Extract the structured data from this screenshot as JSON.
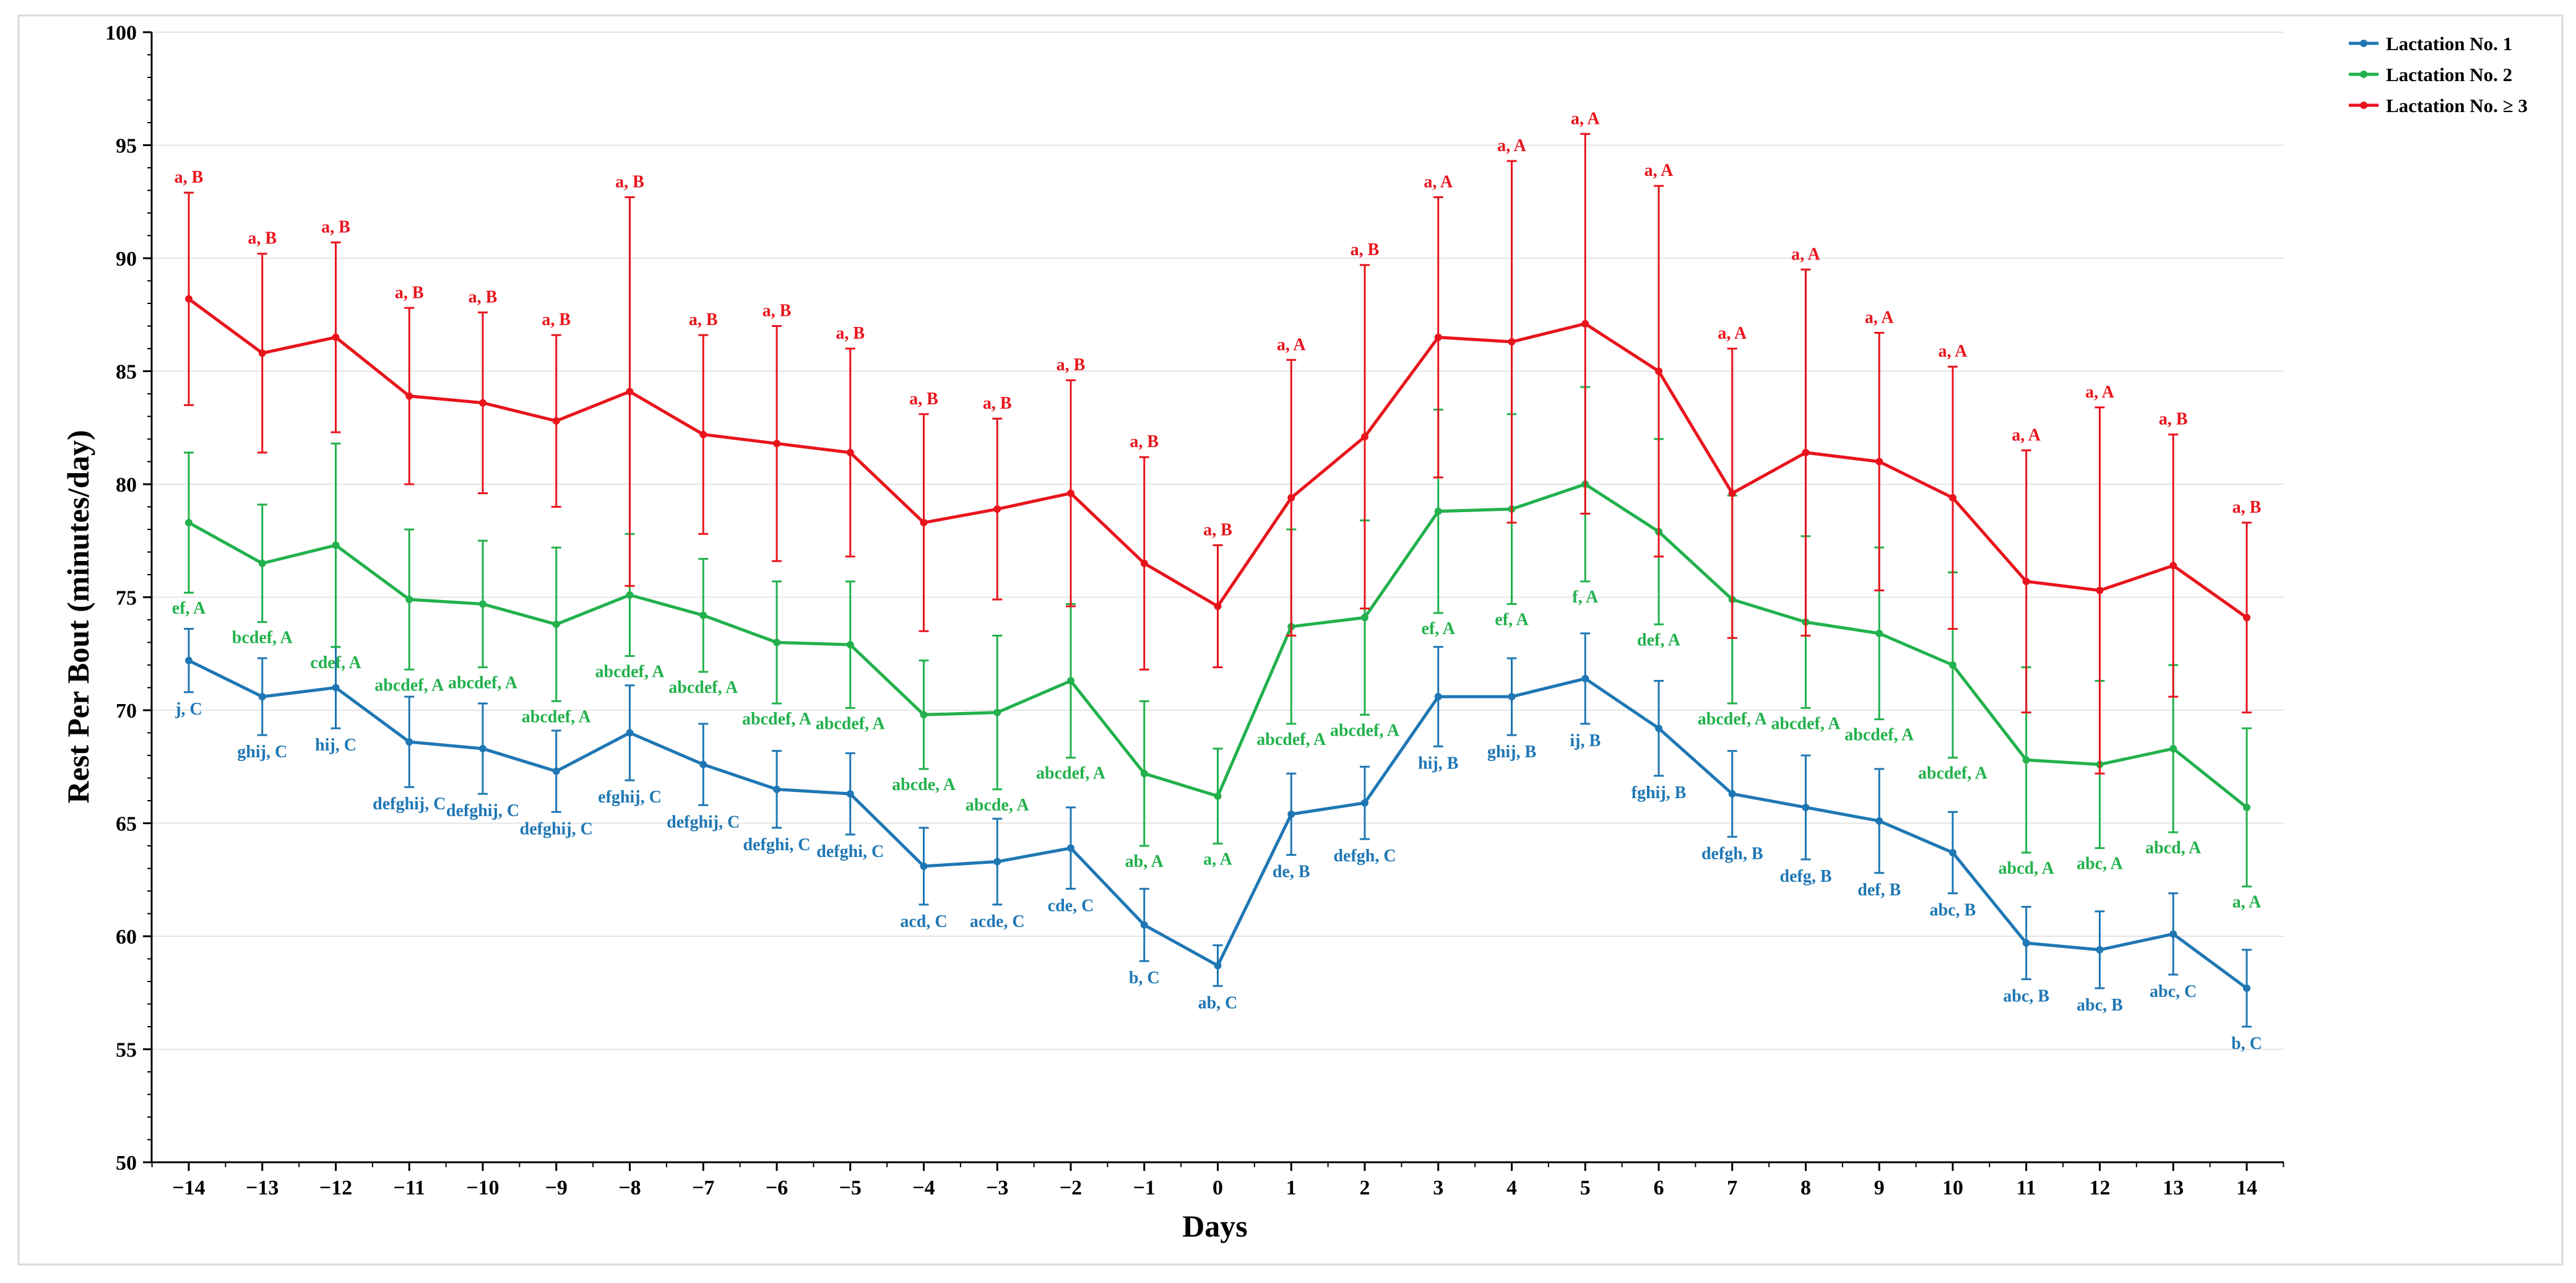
{
  "chart_data": {
    "type": "line",
    "title": "",
    "xlabel": "Days",
    "ylabel": "Rest Per Bout (minutes/day)",
    "ylim": [
      50,
      100
    ],
    "yticks": [
      50,
      55,
      60,
      65,
      70,
      75,
      80,
      85,
      90,
      95,
      100
    ],
    "grid": "horizontal",
    "legend_position": "top-right",
    "x": [
      -14,
      -13,
      -12,
      -11,
      -10,
      -9,
      -8,
      -7,
      -6,
      -5,
      -4,
      -3,
      -2,
      -1,
      0,
      1,
      2,
      3,
      4,
      5,
      6,
      7,
      8,
      9,
      10,
      11,
      12,
      13,
      14
    ],
    "series": [
      {
        "name": "Lactation No. 1",
        "color": "#1f77b4",
        "values": [
          72.2,
          70.6,
          71.0,
          68.6,
          68.3,
          67.3,
          69.0,
          67.6,
          66.5,
          66.3,
          63.1,
          63.3,
          63.9,
          60.5,
          58.7,
          65.4,
          65.9,
          70.6,
          70.6,
          71.4,
          69.2,
          66.3,
          65.7,
          65.1,
          63.7,
          59.7,
          59.4,
          60.1,
          57.7
        ],
        "err": [
          1.4,
          1.7,
          1.8,
          2.0,
          2.0,
          1.8,
          2.1,
          1.8,
          1.7,
          1.8,
          1.7,
          1.9,
          1.8,
          1.6,
          0.9,
          1.8,
          1.6,
          2.2,
          1.7,
          2.0,
          2.1,
          1.9,
          2.3,
          2.3,
          1.8,
          1.6,
          1.7,
          1.8,
          1.7
        ],
        "labels": [
          "j, C",
          "ghij, C",
          "hij, C",
          "defghij, C",
          "defghij, C",
          "defghij, C",
          "efghij, C",
          "defghij, C",
          "defghi, C",
          "defghi, C",
          "acd, C",
          "acde, C",
          "cde, C",
          "b, C",
          "ab, C",
          "de, B",
          "defgh, C",
          "hij, B",
          "ghij, B",
          "ij, B",
          "fghij, B",
          "defgh, B",
          "defg, B",
          "def, B",
          "abc, B",
          "abc, B",
          "abc, B",
          "abc, C",
          "b, C"
        ]
      },
      {
        "name": "Lactation No. 2",
        "color": "#22b14c",
        "values": [
          78.3,
          76.5,
          77.3,
          74.9,
          74.7,
          73.8,
          75.1,
          74.2,
          73.0,
          72.9,
          69.8,
          69.9,
          71.3,
          67.2,
          66.2,
          73.7,
          74.1,
          78.8,
          78.9,
          80.0,
          77.9,
          74.9,
          73.9,
          73.4,
          72.0,
          67.8,
          67.6,
          68.3,
          65.7
        ],
        "err": [
          3.1,
          2.6,
          4.5,
          3.1,
          2.8,
          3.4,
          2.7,
          2.5,
          2.7,
          2.8,
          2.4,
          3.4,
          3.4,
          3.2,
          2.1,
          4.3,
          4.3,
          4.5,
          4.2,
          4.3,
          4.1,
          4.6,
          3.8,
          3.8,
          4.1,
          4.1,
          3.7,
          3.7,
          3.5
        ],
        "labels": [
          "ef, A",
          "bcdef, A",
          "cdef, A",
          "abcdef, A",
          "abcdef, A",
          "abcdef, A",
          "abcdef, A",
          "abcdef, A",
          "abcdef, A",
          "abcdef, A",
          "abcde, A",
          "abcde, A",
          "abcdef, A",
          "ab, A",
          "a, A",
          "abcdef, A",
          "abcdef, A",
          "ef, A",
          "ef, A",
          "f, A",
          "def, A",
          "abcdef, A",
          "abcdef, A",
          "abcdef, A",
          "abcdef, A",
          "abcd, A",
          "abc, A",
          "abcd, A",
          "a, A"
        ]
      },
      {
        "name": "Lactation No. ≥ 3",
        "color": "#e8141c",
        "values": [
          88.2,
          85.8,
          86.5,
          83.9,
          83.6,
          82.8,
          84.1,
          82.2,
          81.8,
          81.4,
          78.3,
          78.9,
          79.6,
          76.5,
          74.6,
          79.4,
          82.1,
          86.5,
          86.3,
          87.1,
          85.0,
          79.6,
          81.4,
          81.0,
          79.4,
          75.7,
          75.3,
          76.4,
          74.1
        ],
        "err": [
          4.7,
          4.4,
          4.2,
          3.9,
          4.0,
          3.8,
          8.6,
          4.4,
          5.2,
          4.6,
          4.8,
          4.0,
          5.0,
          4.7,
          2.7,
          6.1,
          7.6,
          6.2,
          8.0,
          8.4,
          8.2,
          6.4,
          8.1,
          5.7,
          5.8,
          5.8,
          8.1,
          5.8,
          4.2
        ],
        "labels": [
          "a, B",
          "a, B",
          "a, B",
          "a, B",
          "a, B",
          "a, B",
          "a, B",
          "a, B",
          "a, B",
          "a, B",
          "a, B",
          "a, B",
          "a, B",
          "a, B",
          "a, B",
          "a, A",
          "a, B",
          "a, A",
          "a, A",
          "a, A",
          "a, A",
          "a, A",
          "a, A",
          "a, A",
          "a, A",
          "a, A",
          "a, A",
          "a, B",
          "a, B"
        ]
      }
    ]
  }
}
